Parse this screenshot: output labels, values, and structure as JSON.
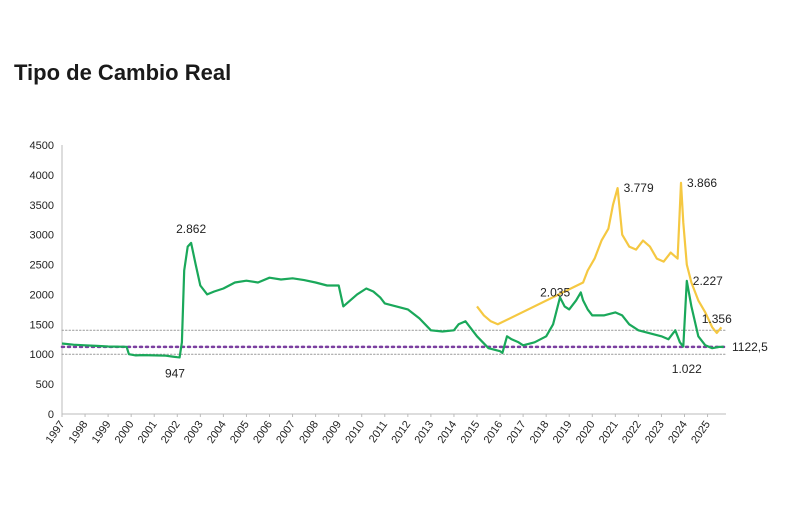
{
  "chart_data": {
    "type": "line",
    "title": "Tipo de Cambio Real",
    "xlabel": "",
    "ylabel": "",
    "ylim": [
      0,
      4500
    ],
    "xlim": [
      1997,
      2025.8
    ],
    "x_ticks": [
      "1997",
      "1998",
      "1999",
      "2000",
      "2001",
      "2002",
      "2003",
      "2004",
      "2005",
      "2006",
      "2007",
      "2008",
      "2009",
      "2010",
      "2011",
      "2012",
      "2013",
      "2014",
      "2015",
      "2016",
      "2017",
      "2018",
      "2019",
      "2020",
      "2021",
      "2022",
      "2023",
      "2024",
      "2025"
    ],
    "y_ticks": [
      "0",
      "500",
      "1000",
      "1500",
      "2000",
      "2500",
      "3000",
      "3500",
      "4000",
      "4500"
    ],
    "grid": false,
    "colors": {
      "official": "#1aa85a",
      "parallel": "#f5c842",
      "mean_line": "#7b3fa0",
      "band": "#999999"
    },
    "reference_lines": [
      {
        "value": 1122.5,
        "style": "dotted",
        "color": "#7b3fa0"
      },
      {
        "value": 1400,
        "style": "dotted",
        "color": "#999999"
      },
      {
        "value": 1000,
        "style": "dotted",
        "color": "#999999"
      }
    ],
    "series": [
      {
        "color": "#1aa85a",
        "x": [
          1997.0,
          1997.5,
          1998.0,
          1998.5,
          1999.0,
          1999.8,
          1999.9,
          2000.2,
          2000.5,
          2001.0,
          2001.5,
          2001.8,
          2002.0,
          2002.1,
          2002.2,
          2002.3,
          2002.45,
          2002.6,
          2002.8,
          2003.0,
          2003.3,
          2003.6,
          2004.0,
          2004.5,
          2005.0,
          2005.5,
          2006.0,
          2006.5,
          2007.0,
          2007.5,
          2008.0,
          2008.5,
          2009.0,
          2009.2,
          2009.5,
          2009.8,
          2010.2,
          2010.5,
          2010.8,
          2011.0,
          2011.5,
          2012.0,
          2012.5,
          2013.0,
          2013.5,
          2014.0,
          2014.2,
          2014.5,
          2014.8,
          2015.0,
          2015.5,
          2016.0,
          2016.1,
          2016.3,
          2016.5,
          2016.8,
          2017.0,
          2017.5,
          2018.0,
          2018.3,
          2018.6,
          2018.8,
          2019.0,
          2019.3,
          2019.5,
          2019.6,
          2019.8,
          2020.0,
          2020.5,
          2021.0,
          2021.3,
          2021.6,
          2022.0,
          2022.5,
          2023.0,
          2023.3,
          2023.6,
          2023.7,
          2023.8,
          2023.95,
          2024.1,
          2024.3,
          2024.6,
          2024.9,
          2025.2,
          2025.5,
          2025.7
        ],
        "values": [
          1180,
          1160,
          1150,
          1140,
          1130,
          1125,
          1000,
          980,
          985,
          980,
          975,
          960,
          950,
          947,
          1200,
          2400,
          2800,
          2862,
          2500,
          2150,
          2000,
          2050,
          2100,
          2200,
          2230,
          2200,
          2280,
          2250,
          2270,
          2240,
          2200,
          2150,
          2150,
          1800,
          1900,
          2000,
          2100,
          2050,
          1950,
          1850,
          1800,
          1750,
          1600,
          1400,
          1380,
          1400,
          1500,
          1550,
          1400,
          1300,
          1100,
          1050,
          1022,
          1300,
          1250,
          1200,
          1150,
          1200,
          1300,
          1500,
          1950,
          1800,
          1750,
          1900,
          2035,
          1900,
          1750,
          1650,
          1650,
          1700,
          1650,
          1500,
          1400,
          1350,
          1300,
          1250,
          1400,
          1300,
          1200,
          1130,
          2227,
          1800,
          1300,
          1150,
          1100,
          1122,
          1122
        ]
      },
      {
        "color": "#f5c842",
        "x": [
          2015.0,
          2015.3,
          2015.6,
          2015.9,
          2019.6,
          2019.8,
          2020.1,
          2020.4,
          2020.7,
          2020.9,
          2021.1,
          2021.3,
          2021.6,
          2021.9,
          2022.2,
          2022.5,
          2022.8,
          2023.1,
          2023.4,
          2023.7,
          2023.85,
          2023.95,
          2024.1,
          2024.3,
          2024.6,
          2024.9,
          2025.2,
          2025.4,
          2025.6
        ],
        "values": [
          1800,
          1650,
          1550,
          1500,
          2200,
          2400,
          2600,
          2900,
          3100,
          3500,
          3779,
          3000,
          2800,
          2750,
          2900,
          2800,
          2600,
          2550,
          2700,
          2600,
          3866,
          3200,
          2500,
          2200,
          1900,
          1700,
          1450,
          1356,
          1450
        ]
      }
    ],
    "annotations": [
      {
        "text": "2.862",
        "x": 2002.6,
        "y": 2862,
        "pos": "above"
      },
      {
        "text": "947",
        "x": 2001.9,
        "y": 947,
        "pos": "below"
      },
      {
        "text": "2.035",
        "x": 2019.3,
        "y": 2035,
        "pos": "left"
      },
      {
        "text": "3.779",
        "x": 2021.1,
        "y": 3779,
        "pos": "right"
      },
      {
        "text": "3.866",
        "x": 2023.85,
        "y": 3866,
        "pos": "right"
      },
      {
        "text": "2.227",
        "x": 2024.1,
        "y": 2227,
        "pos": "right"
      },
      {
        "text": "1.356",
        "x": 2025.4,
        "y": 1356,
        "pos": "above"
      },
      {
        "text": "1.022",
        "x": 2024.1,
        "y": 1022,
        "pos": "below"
      },
      {
        "text": "1122,5",
        "x": 2025.8,
        "y": 1122.5,
        "pos": "right"
      }
    ]
  }
}
